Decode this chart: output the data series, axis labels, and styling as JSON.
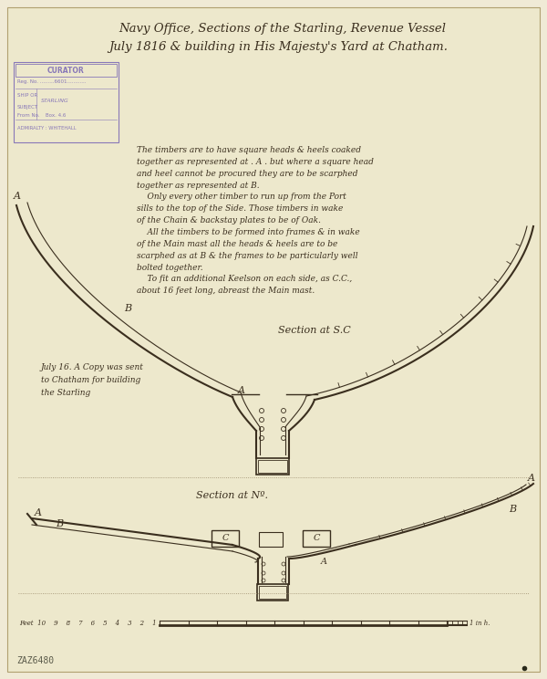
{
  "bg_color": "#f0ead6",
  "paper_color": "#ede8cc",
  "line_color": "#3a2e1e",
  "faint_line": "#9a8a6a",
  "title_line1": "Navy Office, Sections of the Starling, Revenue Vessel",
  "title_line2": "July 1816 & building in His Majesty's Yard at Chatham.",
  "notes_text": "The timbers are to have square heads & heels coaked\ntogether as represented at . A . but where a square head\nand heel cannot be procured they are to be scarphed\ntogether as represented at B.\n    Only every other timber to run up from the Port\nsills to the top of the Side. Those timbers in wake\nof the Chain & backstay plates to be of Oak.\n    All the timbers to be formed into frames & in wake\nof the Main mast all the heads & heels are to be\nscarphed as at B & the frames to be particularly well\nbolted together.\n    To fit an additional Keelson on each side, as C.C.,\nabout 16 feet long, abreast the Main mast.",
  "section_label_top": "Section at S.C",
  "section_label_bot": "Section at Nº.",
  "side_note": "July 16. A Copy was sent\nto Chatham for building\nthe Starling",
  "curator_label": "CURATOR",
  "reg_no": "6601",
  "ship": "STARLING",
  "from_info": "Box. 4.6",
  "admty": "ADMIRALTY : WHITEHALL",
  "archive_ref": "ZAZ6480",
  "scale_label": "Feet  10    9    8    7    6    5    4    3    2    1",
  "scale_end": "1 in h."
}
